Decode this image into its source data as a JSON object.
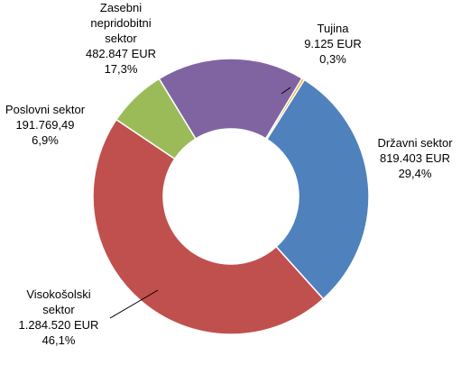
{
  "chart_data": {
    "type": "pie",
    "donut": true,
    "title": "",
    "slices": [
      {
        "name": "Tujina",
        "value": 9125,
        "percent": 0.3,
        "color": "#f2a72c",
        "label_lines": [
          "Tujina",
          "9.125 EUR",
          "0,3%"
        ]
      },
      {
        "name": "Državni sektor",
        "value": 819403,
        "percent": 29.4,
        "color": "#4f81bd",
        "label_lines": [
          "Državni sektor",
          "819.403 EUR",
          "29,4%"
        ]
      },
      {
        "name": "Visokošolski sektor",
        "value": 1284520,
        "percent": 46.1,
        "color": "#c0504d",
        "label_lines": [
          "Visokošolski",
          "sektor",
          "1.284.520 EUR",
          "46,1%"
        ]
      },
      {
        "name": "Poslovni sektor",
        "value": 191769.49,
        "percent": 6.9,
        "color": "#9bbb59",
        "label_lines": [
          "Poslovni sektor",
          "191.769,49",
          "6,9%"
        ]
      },
      {
        "name": "Zasebni nepridobitni sektor",
        "value": 482847,
        "percent": 17.3,
        "color": "#8064a2",
        "label_lines": [
          "Zasebni",
          "nepridobitni",
          "sektor",
          "482.847 EUR",
          "17,3%"
        ]
      }
    ]
  }
}
